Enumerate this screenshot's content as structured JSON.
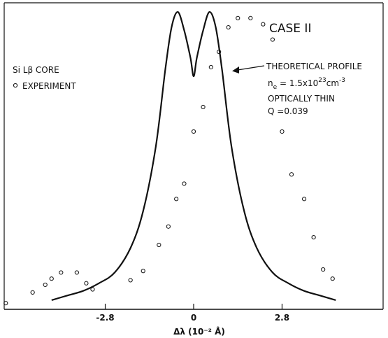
{
  "chart_data": {
    "type": "scatter",
    "title": "CASE II",
    "xlabel": "Δλ (10⁻² Å)",
    "ylabel": "",
    "xlim": [
      -6.0,
      6.0
    ],
    "ylim": [
      0,
      1.0
    ],
    "x_ticks": [
      -2.8,
      0,
      2.8
    ],
    "x_tick_labels": [
      "-2.8",
      "0",
      "2.8"
    ],
    "grid": false,
    "legend": {
      "placement": "left",
      "title": "Si Lβ CORE",
      "marker_label": "EXPERIMENT"
    },
    "annotations": {
      "theory_label": "THEORETICAL PROFILE",
      "density_base": "n",
      "density_sub": "e",
      "density_value": " = 1.5x10",
      "density_exp": "23",
      "density_unit": "cm",
      "density_unit_exp": "-3",
      "thin_label": "OPTICALLY THIN",
      "q_label": "Q =0.039"
    },
    "series": [
      {
        "kind": "points",
        "x": [
          -5.95,
          -5.1,
          -4.7,
          -4.5,
          -4.2,
          -3.7,
          -3.4,
          -3.2,
          -2.0,
          -1.6,
          -1.1,
          -0.8,
          -0.55,
          -0.3,
          0.0,
          0.3,
          0.55,
          0.8,
          1.1,
          1.4,
          1.8,
          2.2,
          2.5,
          2.8,
          3.1,
          3.5,
          3.8,
          4.1,
          4.4
        ],
        "y": [
          0.02,
          0.055,
          0.08,
          0.1,
          0.12,
          0.12,
          0.085,
          0.065,
          0.095,
          0.125,
          0.21,
          0.27,
          0.36,
          0.41,
          0.58,
          0.66,
          0.79,
          0.84,
          0.92,
          0.95,
          0.95,
          0.93,
          0.88,
          0.58,
          0.44,
          0.36,
          0.235,
          0.13,
          0.1
        ]
      },
      {
        "kind": "curve",
        "x": [
          -4.5,
          -4.0,
          -3.5,
          -3.0,
          -2.5,
          -2.0,
          -1.6,
          -1.2,
          -0.9,
          -0.7,
          -0.5,
          -0.3,
          -0.1,
          0.0,
          0.1,
          0.3,
          0.5,
          0.7,
          0.9,
          1.2,
          1.6,
          2.0,
          2.5,
          3.0,
          3.5,
          4.0,
          4.5
        ],
        "y": [
          0.03,
          0.045,
          0.06,
          0.085,
          0.12,
          0.2,
          0.32,
          0.53,
          0.78,
          0.92,
          0.97,
          0.91,
          0.82,
          0.76,
          0.82,
          0.91,
          0.97,
          0.92,
          0.78,
          0.53,
          0.32,
          0.2,
          0.12,
          0.085,
          0.06,
          0.045,
          0.03
        ]
      }
    ]
  }
}
